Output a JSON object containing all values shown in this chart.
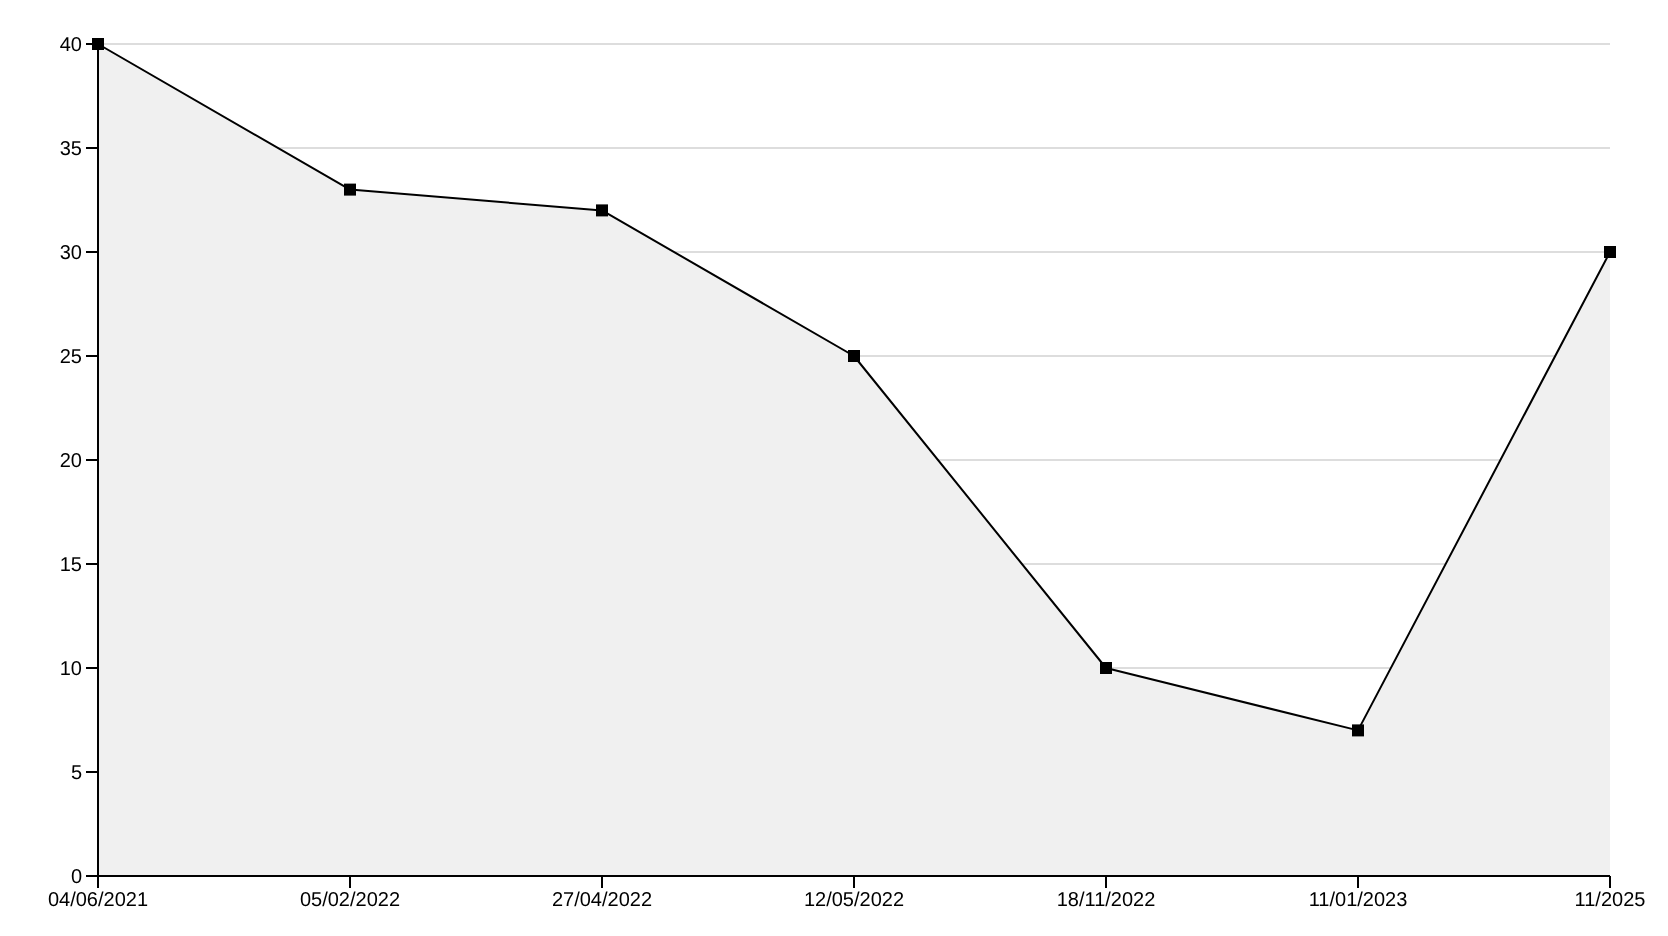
{
  "chart_data": {
    "type": "area",
    "categories": [
      "04/06/2021",
      "05/02/2022",
      "27/04/2022",
      "12/05/2022",
      "18/11/2022",
      "11/01/2023",
      "11/2025"
    ],
    "series": [
      {
        "color": "#000000",
        "values": [
          40,
          33,
          32,
          25,
          10,
          7,
          30
        ]
      }
    ],
    "ylim": [
      0,
      40
    ],
    "yticks": [
      0,
      5,
      10,
      15,
      20,
      25,
      30,
      35,
      40
    ],
    "grid": "y",
    "marker": "square",
    "line_style": "solid"
  }
}
